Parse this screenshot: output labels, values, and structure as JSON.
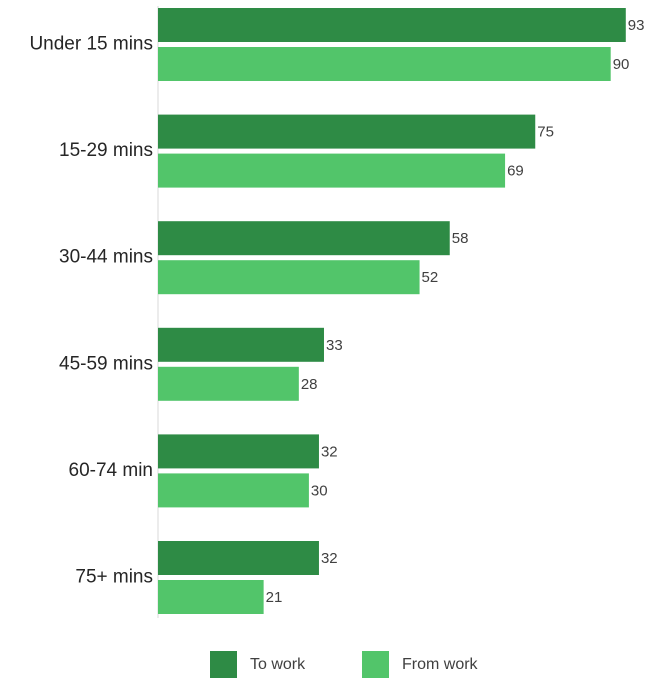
{
  "chart_data": {
    "type": "bar",
    "orientation": "horizontal",
    "categories": [
      "Under 15 mins",
      "15-29 mins",
      "30-44 mins",
      "45-59  mins",
      "60-74 min",
      "75+ mins"
    ],
    "series": [
      {
        "name": "To work",
        "values": [
          93,
          75,
          58,
          33,
          32,
          32
        ],
        "color": "#2e8b45"
      },
      {
        "name": "From work",
        "values": [
          90,
          69,
          52,
          28,
          30,
          21
        ],
        "color": "#52c56a"
      }
    ],
    "title": "",
    "xlabel": "",
    "ylabel": "",
    "xlim": [
      0,
      100
    ],
    "grid": false,
    "legend": "bottom-center",
    "data_labels": true
  }
}
